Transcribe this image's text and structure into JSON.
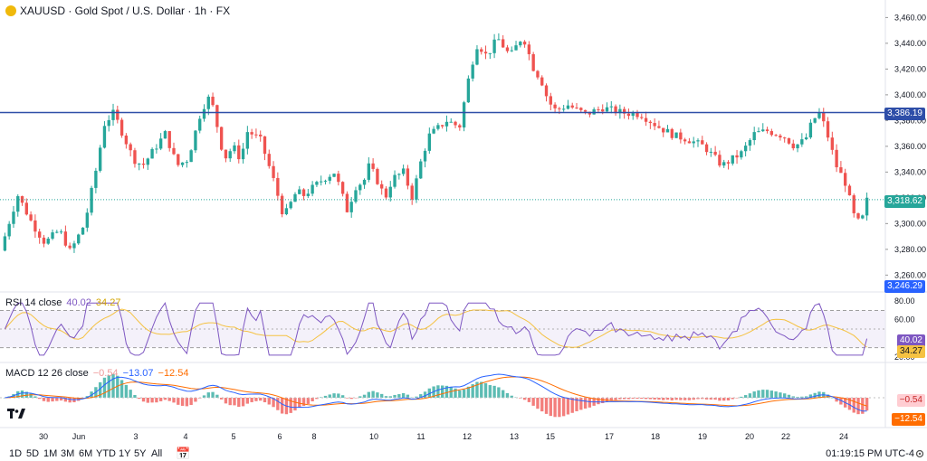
{
  "header": {
    "symbol_line": "XAUUSD · Gold Spot / U.S. Dollar · 1h · FX"
  },
  "colors": {
    "up": "#26a69a",
    "down": "#ef5350",
    "hline": "#2e4ea8",
    "rsi": "#7e57c2",
    "rsi_ma": "#f5c242",
    "macd": "#2962ff",
    "signal": "#ff6d00"
  },
  "price_axis": {
    "ticks": [
      "3,460.00",
      "3,440.00",
      "3,420.00",
      "3,400.00",
      "3,380.00",
      "3,360.00",
      "3,340.00",
      "3,320.00",
      "3,300.00",
      "3,280.00",
      "3,260.00"
    ],
    "tick_values": [
      3460,
      3440,
      3420,
      3400,
      3380,
      3360,
      3340,
      3320,
      3300,
      3280,
      3260
    ],
    "ylim": [
      3249,
      3468
    ],
    "hline_label": "3,386.19",
    "hline_value": 3386.19,
    "last_label": "3,318.62",
    "last_value": 3318.62,
    "low_label": "3,246.29"
  },
  "rsi": {
    "title": "RSI 14 close",
    "value": "40.02",
    "ma_value": "34.27",
    "ticks": [
      "80.00",
      "60.00",
      "20.00"
    ],
    "tick_values": [
      80,
      60,
      20
    ],
    "ylim": [
      17,
      85
    ],
    "band": [
      30,
      70
    ],
    "mid": 50,
    "badge_value": "40.02",
    "badge_ma": "34.27",
    "badge_bottom": "20.00"
  },
  "macd": {
    "title": "MACD 12 26 close",
    "hist": "−0.54",
    "macd": "−13.07",
    "signal": "−12.54",
    "badge_hist": "−0.54",
    "badge_signal": "−12.54"
  },
  "x_axis": {
    "labels": [
      "30",
      "Jun",
      "3",
      "4",
      "5",
      "6",
      "8",
      "10",
      "11",
      "12",
      "13",
      "15",
      "17",
      "18",
      "19",
      "20",
      "22",
      "24"
    ]
  },
  "timeframes": [
    "1D",
    "5D",
    "1M",
    "3M",
    "6M",
    "YTD",
    "1Y",
    "5Y",
    "All"
  ],
  "footer": {
    "clock": "01:19:15 PM UTC-4"
  },
  "chart_data": [
    {
      "type": "line",
      "title": "XAUUSD · Gold Spot / U.S. Dollar · 1h · FX",
      "note": "candlestick chart, hourly; approximate close path read from the chart",
      "x": [
        "30",
        "Jun",
        "3",
        "4",
        "5",
        "6",
        "8",
        "10",
        "11",
        "12",
        "13",
        "15",
        "17",
        "18",
        "19",
        "20",
        "22",
        "24"
      ],
      "y": [
        3300,
        3295,
        3378,
        3352,
        3372,
        3335,
        3308,
        3322,
        3335,
        3375,
        3435,
        3412,
        3390,
        3388,
        3370,
        3355,
        3372,
        3318.62
      ],
      "hlines": [
        3386.19
      ],
      "ylim": [
        3249,
        3468
      ]
    },
    {
      "type": "line",
      "title": "RSI 14 close",
      "series": [
        {
          "name": "RSI",
          "last": 40.02
        },
        {
          "name": "MA",
          "last": 34.27
        }
      ],
      "ylim": [
        17,
        85
      ]
    },
    {
      "type": "bar",
      "title": "MACD 12 26 close",
      "series": [
        {
          "name": "hist",
          "last": -0.54
        },
        {
          "name": "MACD",
          "last": -13.07
        },
        {
          "name": "signal",
          "last": -12.54
        }
      ]
    }
  ]
}
